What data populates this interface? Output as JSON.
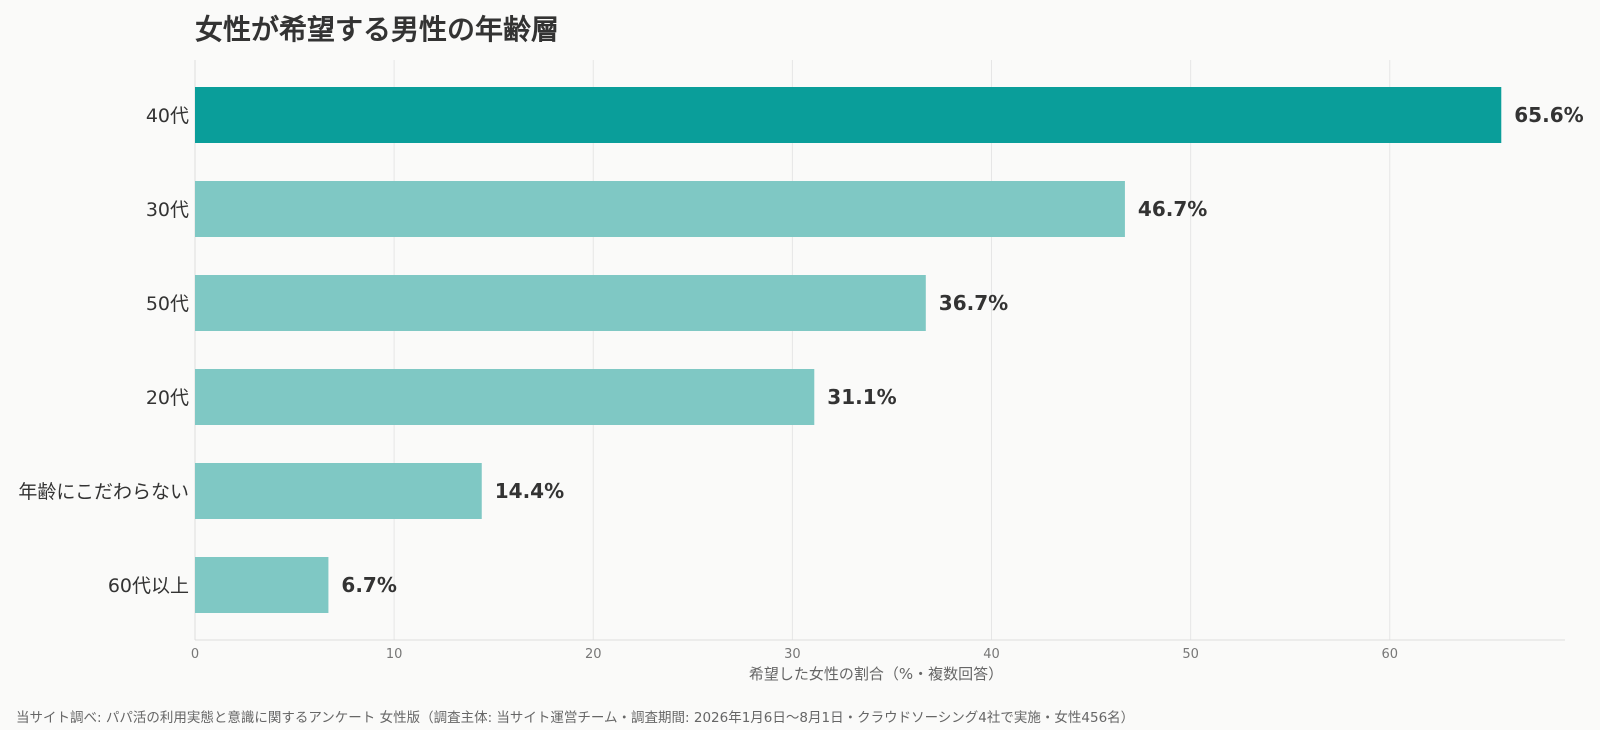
{
  "chart_data": {
    "type": "bar",
    "orientation": "horizontal",
    "title": "女性が希望する男性の年齢層",
    "xlabel": "希望した女性の割合（%・複数回答）",
    "ylabel": "",
    "categories": [
      "40代",
      "30代",
      "50代",
      "20代",
      "年齢にこだわらない",
      "60代以上"
    ],
    "values": [
      65.6,
      46.7,
      36.7,
      31.1,
      14.4,
      6.7
    ],
    "value_labels": [
      "65.6%",
      "46.7%",
      "36.7%",
      "31.1%",
      "14.4%",
      "6.7%"
    ],
    "xlim": [
      0,
      68.8
    ],
    "xticks": [
      0,
      10,
      20,
      30,
      40,
      50,
      60
    ],
    "grid": "vertical",
    "colors": {
      "highlight": "#0a9e9a",
      "bar": "#7fc8c4",
      "grid": "#e6e6e6",
      "text": "#333333",
      "background": "#fafaf9"
    }
  },
  "footer": {
    "source": "当サイト調べ: パパ活の利用実態と意識に関するアンケート 女性版（調査主体: 当サイト運営チーム・調査期間: 2026年1月6日〜8月1日・クラウドソーシング4社で実施・女性456名）"
  }
}
